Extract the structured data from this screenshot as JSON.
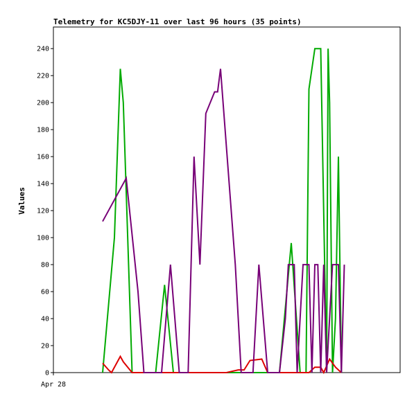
{
  "chart_data": {
    "type": "line",
    "title": "Telemetry for KC5DJY-11 over last 96 hours (35 points)",
    "ylabel": "Values",
    "xlabel": "",
    "ylim": [
      0,
      256
    ],
    "yticks": [
      0,
      20,
      40,
      60,
      80,
      100,
      120,
      140,
      160,
      180,
      200,
      220,
      240
    ],
    "xtick_label": "Apr 28",
    "grid": false,
    "series": [
      {
        "color": "#00aa00",
        "points": [
          [
            0,
            0
          ],
          [
            4,
            100
          ],
          [
            6,
            225
          ],
          [
            7,
            200
          ],
          [
            10,
            0
          ],
          [
            18,
            0
          ],
          [
            21,
            65
          ],
          [
            24,
            0
          ],
          [
            60,
            0
          ],
          [
            64,
            96
          ],
          [
            67,
            0
          ],
          [
            69,
            0
          ],
          [
            70,
            210
          ],
          [
            72,
            240
          ],
          [
            74,
            240
          ],
          [
            76,
            0
          ],
          [
            76.5,
            240
          ],
          [
            77,
            200
          ],
          [
            78,
            0
          ],
          [
            79,
            40
          ],
          [
            80,
            160
          ],
          [
            81,
            0
          ]
        ]
      },
      {
        "color": "#dd0000",
        "points": [
          [
            0,
            7
          ],
          [
            2,
            2
          ],
          [
            3,
            0
          ],
          [
            5,
            8
          ],
          [
            6,
            12
          ],
          [
            7,
            8
          ],
          [
            10,
            0
          ],
          [
            42,
            0
          ],
          [
            46,
            2
          ],
          [
            48,
            2
          ],
          [
            50,
            9
          ],
          [
            54,
            10
          ],
          [
            56,
            0
          ],
          [
            70,
            0
          ],
          [
            72,
            4
          ],
          [
            74,
            4
          ],
          [
            75,
            0
          ],
          [
            77,
            10
          ],
          [
            79,
            4
          ],
          [
            80,
            2
          ],
          [
            81,
            0
          ]
        ]
      },
      {
        "color": "#770077",
        "points": [
          [
            0,
            112
          ],
          [
            8,
            144
          ],
          [
            12,
            60
          ],
          [
            14,
            0
          ],
          [
            18,
            0
          ],
          [
            20,
            0
          ],
          [
            23,
            80
          ],
          [
            26,
            0
          ],
          [
            29,
            0
          ],
          [
            31,
            160
          ],
          [
            33,
            80
          ],
          [
            35,
            192
          ],
          [
            38,
            208
          ],
          [
            39,
            208
          ],
          [
            40,
            225
          ],
          [
            45,
            80
          ],
          [
            47,
            0
          ],
          [
            51,
            0
          ],
          [
            53,
            80
          ],
          [
            56,
            0
          ],
          [
            60,
            0
          ],
          [
            62,
            40
          ],
          [
            63,
            80
          ],
          [
            65,
            80
          ],
          [
            66,
            0
          ],
          [
            68,
            80
          ],
          [
            70,
            80
          ],
          [
            71,
            0
          ],
          [
            72,
            80
          ],
          [
            73,
            80
          ],
          [
            74,
            0
          ],
          [
            75,
            80
          ],
          [
            76,
            0
          ],
          [
            78,
            80
          ],
          [
            80,
            80
          ],
          [
            81,
            0
          ],
          [
            82,
            80
          ]
        ]
      }
    ]
  }
}
